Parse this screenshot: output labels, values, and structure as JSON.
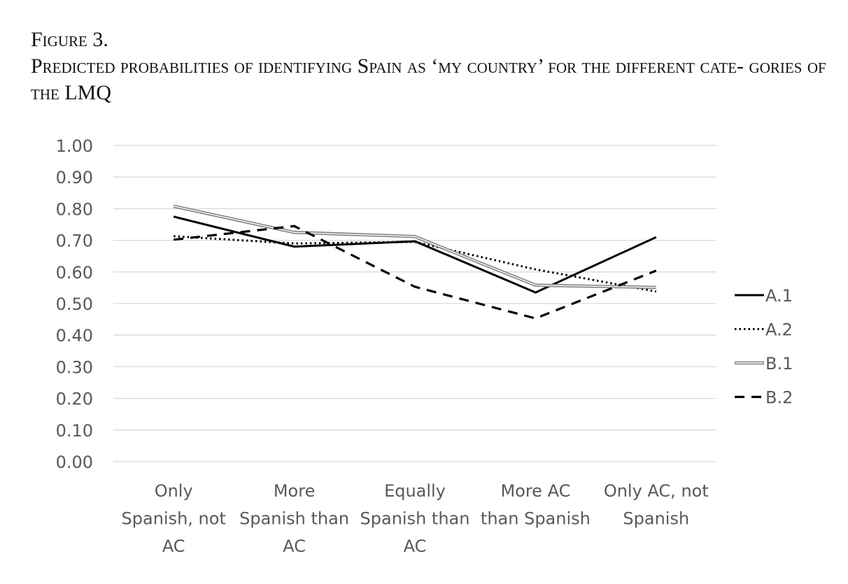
{
  "caption": {
    "figure_label": "Figure 3.",
    "title": "Predicted probabilities of identifying Spain as ‘my country’ for the different cate- gories of the LMQ"
  },
  "chart_data": {
    "type": "line",
    "title": "Predicted probabilities of identifying Spain as ‘my country’ for the different categories of the LMQ",
    "xlabel": "",
    "ylabel": "",
    "ylim": [
      0,
      1
    ],
    "yticks": [
      "0.00",
      "0.10",
      "0.20",
      "0.30",
      "0.40",
      "0.50",
      "0.60",
      "0.70",
      "0.80",
      "0.90",
      "1.00"
    ],
    "grid": true,
    "legend_position": "right",
    "categories": [
      [
        "Only",
        "Spanish, not",
        "AC"
      ],
      [
        "More",
        "Spanish than",
        "AC"
      ],
      [
        "Equally",
        "Spanish than",
        "AC"
      ],
      [
        "More AC",
        "than Spanish"
      ],
      [
        "Only AC, not",
        "Spanish"
      ]
    ],
    "series": [
      {
        "name": "A.1",
        "style": "solid",
        "color": "#000000",
        "values": [
          0.775,
          0.68,
          0.697,
          0.535,
          0.71
        ]
      },
      {
        "name": "A.2",
        "style": "dotted",
        "color": "#000000",
        "values": [
          0.713,
          0.69,
          0.695,
          0.608,
          0.538
        ]
      },
      {
        "name": "B.1",
        "style": "double",
        "color": "#808080",
        "values": [
          0.808,
          0.725,
          0.712,
          0.558,
          0.551
        ]
      },
      {
        "name": "B.2",
        "style": "dashed",
        "color": "#000000",
        "values": [
          0.702,
          0.745,
          0.553,
          0.453,
          0.604
        ]
      }
    ]
  }
}
